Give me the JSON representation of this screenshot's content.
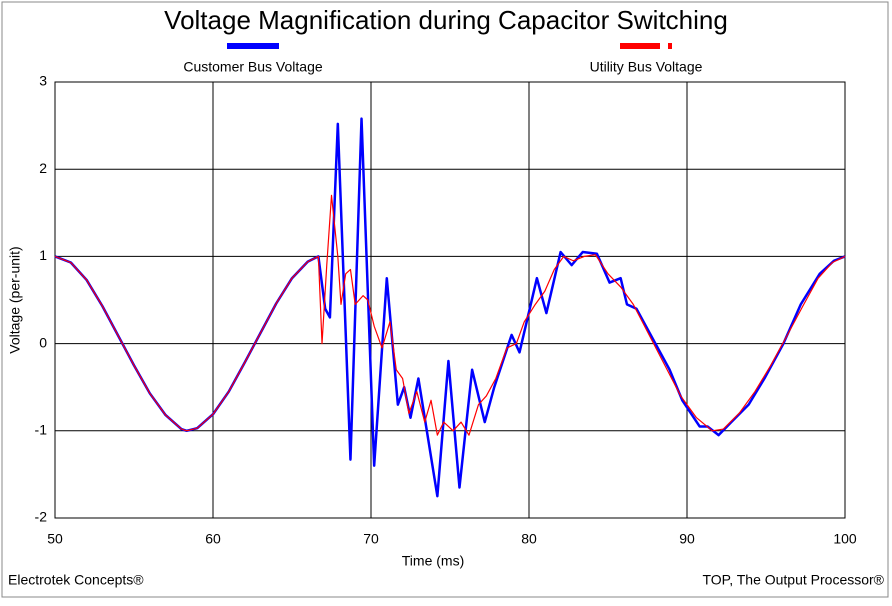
{
  "chart_data": {
    "type": "line",
    "title": "Voltage Magnification during Capacitor Switching",
    "x_label": "Time (ms)",
    "y_label": "Voltage (per-unit)",
    "footer_left": "Electrotek Concepts®",
    "footer_right": "TOP, The Output Processor®",
    "xlim": [
      50,
      100
    ],
    "xticks": [
      50,
      60,
      70,
      80,
      90,
      100
    ],
    "ylim": [
      -2,
      3
    ],
    "yticks": [
      -2,
      -1,
      0,
      1,
      2,
      3
    ],
    "grid": true,
    "series": [
      {
        "name": "Customer Bus Voltage",
        "color": "#0000ff",
        "width": 2.5,
        "dash": "solid",
        "x": [
          50,
          51,
          52,
          53,
          54,
          55,
          56,
          57,
          58,
          58.33,
          59,
          60,
          61,
          62,
          63,
          64,
          65,
          66,
          66.67,
          67.1,
          67.4,
          67.9,
          68.7,
          69.4,
          70.2,
          71.0,
          71.7,
          72.1,
          72.5,
          73.0,
          74.2,
          74.9,
          75.6,
          76.4,
          77.2,
          77.8,
          78.9,
          79.4,
          80.5,
          81.1,
          82.0,
          82.7,
          83.4,
          84.3,
          85.1,
          85.8,
          86.2,
          86.8,
          88.0,
          88.9,
          89.7,
          90.8,
          91.3,
          92.0,
          92.8,
          93.9,
          94.9,
          96.1,
          97.2,
          98.4,
          99.3,
          100
        ],
        "values": [
          1,
          0.93,
          0.73,
          0.43,
          0.09,
          -0.25,
          -0.57,
          -0.82,
          -0.98,
          -1,
          -0.97,
          -0.81,
          -0.55,
          -0.22,
          0.12,
          0.46,
          0.75,
          0.94,
          1,
          0.4,
          0.3,
          2.52,
          -1.33,
          2.58,
          -1.4,
          0.75,
          -0.7,
          -0.5,
          -0.85,
          -0.4,
          -1.75,
          -0.2,
          -1.65,
          -0.3,
          -0.9,
          -0.5,
          0.1,
          -0.1,
          0.75,
          0.35,
          1.05,
          0.9,
          1.05,
          1.03,
          0.7,
          0.75,
          0.45,
          0.4,
          0.0,
          -0.3,
          -0.65,
          -0.95,
          -0.95,
          -1.05,
          -0.9,
          -0.7,
          -0.4,
          0.0,
          0.45,
          0.8,
          0.95,
          1
        ]
      },
      {
        "name": "Utility Bus Voltage",
        "color": "#ff0000",
        "width": 1.2,
        "dash": "dashed",
        "x": [
          50,
          51,
          52,
          53,
          54,
          55,
          56,
          57,
          58,
          58.33,
          59,
          60,
          61,
          62,
          63,
          64,
          65,
          66,
          66.67,
          66.9,
          67.2,
          67.5,
          67.9,
          68.1,
          68.4,
          68.7,
          69.0,
          69.5,
          69.8,
          70.2,
          70.7,
          71.2,
          71.6,
          72.0,
          72.4,
          72.9,
          73.4,
          73.8,
          74.2,
          74.6,
          75.2,
          75.7,
          76.2,
          76.8,
          77.3,
          77.9,
          78.6,
          79.2,
          79.7,
          80.4,
          81.0,
          81.6,
          82.2,
          82.8,
          83.5,
          84.2,
          85.0,
          85.8,
          86.6,
          87.6,
          88.6,
          89.6,
          90.6,
          91.6,
          92.3,
          93.3,
          94.3,
          95.3,
          96.3,
          97.3,
          98.3,
          99.2,
          100
        ],
        "values": [
          1,
          0.93,
          0.73,
          0.43,
          0.09,
          -0.25,
          -0.57,
          -0.82,
          -0.98,
          -1,
          -0.97,
          -0.81,
          -0.55,
          -0.22,
          0.12,
          0.46,
          0.75,
          0.94,
          1,
          0.0,
          0.9,
          1.7,
          1.0,
          0.45,
          0.8,
          0.85,
          0.45,
          0.55,
          0.5,
          0.2,
          -0.05,
          0.25,
          -0.3,
          -0.4,
          -0.8,
          -0.55,
          -0.9,
          -0.65,
          -1.05,
          -0.9,
          -1.0,
          -0.9,
          -1.05,
          -0.7,
          -0.6,
          -0.4,
          -0.05,
          0.0,
          0.25,
          0.45,
          0.6,
          0.85,
          1.0,
          0.95,
          1.0,
          1.02,
          0.8,
          0.65,
          0.45,
          0.1,
          -0.25,
          -0.6,
          -0.85,
          -1.0,
          -0.98,
          -0.8,
          -0.55,
          -0.25,
          0.08,
          0.42,
          0.75,
          0.93,
          1
        ]
      }
    ]
  }
}
